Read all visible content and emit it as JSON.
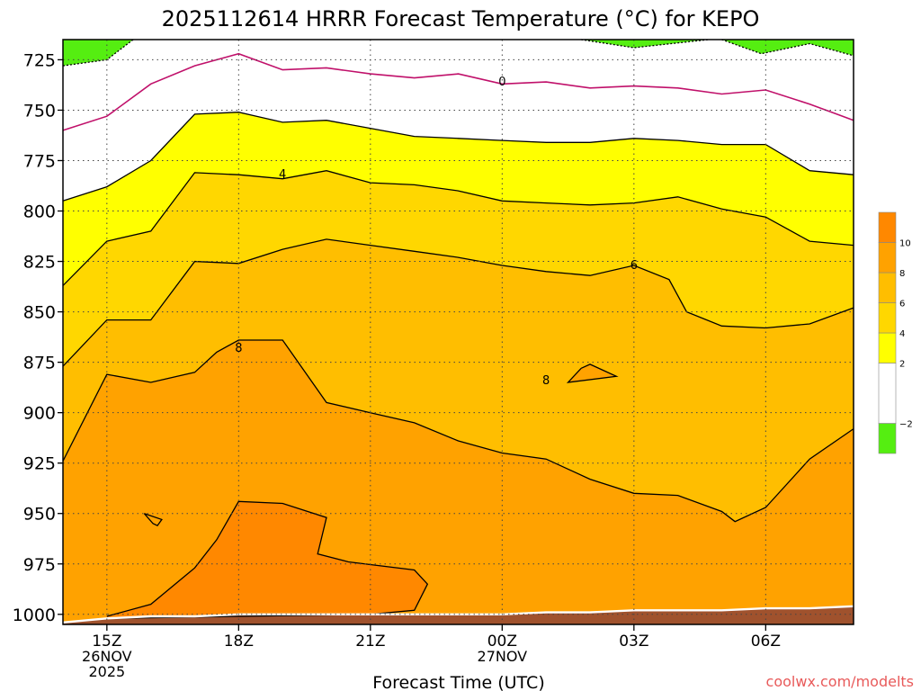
{
  "chart_data": {
    "type": "heatmap",
    "title": "2025112614 HRRR Forecast Temperature (°C) for KEPO",
    "xlabel": "Forecast Time (UTC)",
    "credit": "coolwx.com/modelts",
    "x_range_hours": [
      14,
      32
    ],
    "y_range_hPa": [
      1005,
      715
    ],
    "y_ticks": [
      {
        "value": 725,
        "label": "725"
      },
      {
        "value": 750,
        "label": "750"
      },
      {
        "value": 775,
        "label": "775"
      },
      {
        "value": 800,
        "label": "800"
      },
      {
        "value": 825,
        "label": "825"
      },
      {
        "value": 850,
        "label": "850"
      },
      {
        "value": 875,
        "label": "875"
      },
      {
        "value": 900,
        "label": "900"
      },
      {
        "value": 925,
        "label": "925"
      },
      {
        "value": 950,
        "label": "950"
      },
      {
        "value": 975,
        "label": "975"
      },
      {
        "value": 1000,
        "label": "1000"
      }
    ],
    "x_ticks": [
      {
        "value": 15,
        "label": "15Z",
        "date": "26NOV",
        "year": "2025"
      },
      {
        "value": 18,
        "label": "18Z",
        "date": "",
        "year": ""
      },
      {
        "value": 21,
        "label": "21Z",
        "date": "",
        "year": ""
      },
      {
        "value": 24,
        "label": "00Z",
        "date": "27NOV",
        "year": ""
      },
      {
        "value": 27,
        "label": "03Z",
        "date": "",
        "year": ""
      },
      {
        "value": 30,
        "label": "06Z",
        "date": "",
        "year": ""
      }
    ],
    "grid": "dotted",
    "legend_placement": "right",
    "colorbar": [
      {
        "from": -4,
        "to": -2,
        "color": "#55ee11"
      },
      {
        "from": -2,
        "to": 2,
        "color": "#ffffff"
      },
      {
        "from": 2,
        "to": 4,
        "color": "#ffff00"
      },
      {
        "from": 4,
        "to": 6,
        "color": "#ffd700"
      },
      {
        "from": 6,
        "to": 8,
        "color": "#ffbe00"
      },
      {
        "from": 8,
        "to": 10,
        "color": "#ffa200"
      },
      {
        "from": 10,
        "to": 12,
        "color": "#ff8800"
      }
    ],
    "colorbar_labels": [
      {
        "value": -2,
        "label": "−2"
      },
      {
        "value": 2,
        "label": "2"
      },
      {
        "value": 4,
        "label": "4"
      },
      {
        "value": 6,
        "label": "6"
      },
      {
        "value": 8,
        "label": "8"
      },
      {
        "value": 10,
        "label": "10"
      }
    ],
    "contour_labels": [
      {
        "text": "0",
        "hour": 24.0,
        "hPa": 736
      },
      {
        "text": "4",
        "hour": 19.0,
        "hPa": 782
      },
      {
        "text": "6",
        "hour": 27.0,
        "hPa": 827
      },
      {
        "text": "8",
        "hour": 18.0,
        "hPa": 868
      },
      {
        "text": "8",
        "hour": 25.0,
        "hPa": 884
      }
    ],
    "isotherms": {
      "minus2": [
        [
          14,
          728
        ],
        [
          15,
          725
        ],
        [
          15.6,
          715
        ]
      ],
      "minus2_right": [
        [
          25.8,
          715
        ],
        [
          27,
          719
        ],
        [
          28.7,
          715
        ]
      ],
      "minus2_far_right": [
        [
          29,
          715
        ],
        [
          29.9,
          722
        ],
        [
          31,
          717
        ],
        [
          32,
          723
        ]
      ],
      "zero": [
        [
          14,
          760
        ],
        [
          15,
          753
        ],
        [
          16,
          737
        ],
        [
          17,
          728
        ],
        [
          18,
          722
        ],
        [
          19,
          730
        ],
        [
          20,
          729
        ],
        [
          21,
          732
        ],
        [
          22,
          734
        ],
        [
          23,
          732
        ],
        [
          24,
          737
        ],
        [
          25,
          736
        ],
        [
          26,
          739
        ],
        [
          27,
          738
        ],
        [
          28,
          739
        ],
        [
          29,
          742
        ],
        [
          30,
          740
        ],
        [
          31,
          747
        ],
        [
          32,
          755
        ]
      ],
      "two": [
        [
          14,
          795
        ],
        [
          15,
          788
        ],
        [
          16,
          775
        ],
        [
          17,
          752
        ],
        [
          18,
          751
        ],
        [
          19,
          756
        ],
        [
          20,
          755
        ],
        [
          21,
          759
        ],
        [
          22,
          763
        ],
        [
          23,
          764
        ],
        [
          24,
          765
        ],
        [
          25,
          766
        ],
        [
          26,
          766
        ],
        [
          27,
          764
        ],
        [
          28,
          765
        ],
        [
          29,
          767
        ],
        [
          30,
          767
        ],
        [
          31,
          780
        ],
        [
          32,
          782
        ]
      ],
      "four": [
        [
          14,
          837
        ],
        [
          15,
          815
        ],
        [
          16,
          810
        ],
        [
          17,
          781
        ],
        [
          18,
          782
        ],
        [
          19,
          784
        ],
        [
          20,
          780
        ],
        [
          21,
          786
        ],
        [
          22,
          787
        ],
        [
          23,
          790
        ],
        [
          24,
          795
        ],
        [
          25,
          796
        ],
        [
          26,
          797
        ],
        [
          27,
          796
        ],
        [
          28,
          793
        ],
        [
          29,
          799
        ],
        [
          30,
          803
        ],
        [
          31,
          815
        ],
        [
          32,
          817
        ]
      ],
      "six": [
        [
          14,
          877
        ],
        [
          15,
          854
        ],
        [
          16,
          854
        ],
        [
          17,
          825
        ],
        [
          18,
          826
        ],
        [
          19,
          819
        ],
        [
          20,
          814
        ],
        [
          21,
          817
        ],
        [
          22,
          820
        ],
        [
          23,
          823
        ],
        [
          24,
          827
        ],
        [
          25,
          830
        ],
        [
          26,
          832
        ],
        [
          27,
          827
        ],
        [
          27.8,
          834
        ],
        [
          28.2,
          850
        ],
        [
          29,
          857
        ],
        [
          30,
          858
        ],
        [
          31,
          856
        ],
        [
          32,
          848
        ]
      ],
      "eight": [
        [
          14,
          924
        ],
        [
          15,
          881
        ],
        [
          16,
          885
        ],
        [
          17,
          880
        ],
        [
          17.5,
          870
        ],
        [
          18,
          864
        ],
        [
          19,
          864
        ],
        [
          20,
          895
        ],
        [
          21,
          900
        ],
        [
          22,
          905
        ],
        [
          23,
          914
        ],
        [
          24,
          920
        ],
        [
          25,
          923
        ],
        [
          26,
          933
        ],
        [
          27,
          940
        ],
        [
          28,
          941
        ],
        [
          29,
          949
        ],
        [
          29.3,
          954
        ],
        [
          30,
          947
        ],
        [
          31,
          923
        ],
        [
          32,
          908
        ]
      ],
      "eight_island": [
        [
          25.8,
          878
        ],
        [
          25.5,
          885
        ],
        [
          26.6,
          882
        ],
        [
          26,
          876
        ],
        [
          25.8,
          878
        ]
      ],
      "ten": [
        [
          15,
          1001
        ],
        [
          16,
          995
        ],
        [
          17,
          977
        ],
        [
          17.5,
          963
        ],
        [
          18,
          944
        ],
        [
          19,
          945
        ],
        [
          20,
          952
        ],
        [
          19.8,
          970
        ],
        [
          20.5,
          974
        ],
        [
          22,
          978
        ],
        [
          22.3,
          985
        ],
        [
          22,
          998
        ],
        [
          21,
          1000
        ],
        [
          15,
          1002
        ]
      ],
      "ten_small": [
        [
          15.85,
          950
        ],
        [
          16.05,
          955
        ],
        [
          16.15,
          956
        ],
        [
          16.25,
          953
        ],
        [
          15.85,
          950
        ]
      ],
      "surface": [
        [
          14,
          1004
        ],
        [
          15,
          1002
        ],
        [
          16,
          1001
        ],
        [
          17,
          1001
        ],
        [
          18,
          1000
        ],
        [
          19,
          1000
        ],
        [
          20,
          1000
        ],
        [
          21,
          1000
        ],
        [
          22,
          1000
        ],
        [
          23,
          1000
        ],
        [
          24,
          1000
        ],
        [
          25,
          999
        ],
        [
          26,
          999
        ],
        [
          27,
          998
        ],
        [
          28,
          998
        ],
        [
          29,
          998
        ],
        [
          30,
          997
        ],
        [
          31,
          997
        ],
        [
          32,
          996
        ]
      ]
    }
  }
}
